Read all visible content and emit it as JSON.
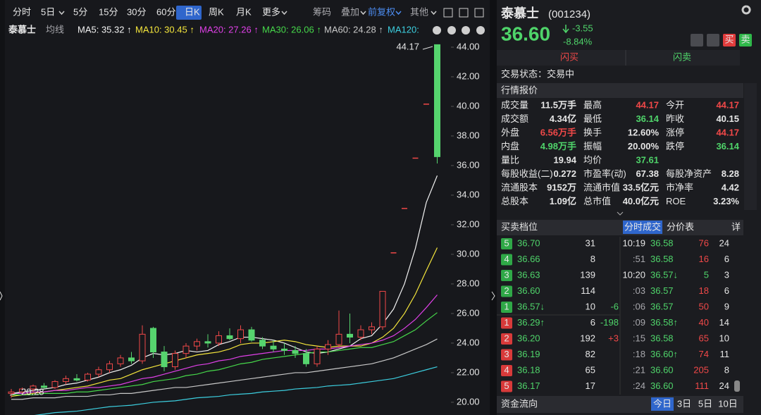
{
  "toolbar": {
    "periods": [
      "分时",
      "5日",
      "5分",
      "15分",
      "30分",
      "60分",
      "日K",
      "周K",
      "月K",
      "更多"
    ],
    "tools": [
      "筹码",
      "叠加",
      "前复权",
      "其他"
    ]
  },
  "chart_header": {
    "name": "泰慕士",
    "ma_type": "均线"
  },
  "chart_data": {
    "type": "candlestick",
    "ylim": [
      19.14,
      44.57
    ],
    "yticks": [
      {
        "value": 20,
        "label": "20.00"
      },
      {
        "value": 22,
        "label": "22.00"
      },
      {
        "value": 24,
        "label": "24.00"
      },
      {
        "value": 26,
        "label": "26.00"
      },
      {
        "value": 28,
        "label": "28.00"
      },
      {
        "value": 30,
        "label": "30.00"
      },
      {
        "value": 32,
        "label": "32.00"
      },
      {
        "value": 34,
        "label": "34.00"
      },
      {
        "value": 36,
        "label": "36.00"
      },
      {
        "value": 38,
        "label": "38.00"
      },
      {
        "value": 40,
        "label": "40.00"
      },
      {
        "value": 42,
        "label": "42.00"
      },
      {
        "value": 44,
        "label": "44.00"
      }
    ],
    "up_color": "#f04848",
    "down_color": "#56d46e",
    "ohlc": [
      [
        20.6,
        20.9,
        20.3,
        20.7
      ],
      [
        20.7,
        21.0,
        20.5,
        20.9
      ],
      [
        20.9,
        21.2,
        20.7,
        21.1
      ],
      [
        21.1,
        21.3,
        20.9,
        21.0
      ],
      [
        21.0,
        21.5,
        20.9,
        21.4
      ],
      [
        21.4,
        21.8,
        21.2,
        21.6
      ],
      [
        21.6,
        21.9,
        21.4,
        21.5
      ],
      [
        21.5,
        22.0,
        21.4,
        21.9
      ],
      [
        21.9,
        22.4,
        21.7,
        22.2
      ],
      [
        22.2,
        22.8,
        22.0,
        22.6
      ],
      [
        22.6,
        23.2,
        22.4,
        23.0
      ],
      [
        23.0,
        23.4,
        22.6,
        22.8
      ],
      [
        22.8,
        25.2,
        22.6,
        24.6
      ],
      [
        25.0,
        25.1,
        23.0,
        23.4
      ],
      [
        23.4,
        23.8,
        22.1,
        22.4
      ],
      [
        22.4,
        23.5,
        22.2,
        23.3
      ],
      [
        23.3,
        24.0,
        23.0,
        23.8
      ],
      [
        23.8,
        24.3,
        23.5,
        24.1
      ],
      [
        24.1,
        24.6,
        23.7,
        24.0
      ],
      [
        24.0,
        24.8,
        23.8,
        24.5
      ],
      [
        24.5,
        25.0,
        24.2,
        24.3
      ],
      [
        24.3,
        25.2,
        24.0,
        24.9
      ],
      [
        24.9,
        25.1,
        24.1,
        24.2
      ],
      [
        24.2,
        24.4,
        23.6,
        23.8
      ],
      [
        23.8,
        24.2,
        23.4,
        23.6
      ],
      [
        23.6,
        24.0,
        23.2,
        23.5
      ],
      [
        23.5,
        23.8,
        23.0,
        23.3
      ],
      [
        23.3,
        23.6,
        22.4,
        22.6
      ],
      [
        22.6,
        23.8,
        22.4,
        23.6
      ],
      [
        23.6,
        24.2,
        23.2,
        23.9
      ],
      [
        23.9,
        26.2,
        23.7,
        24.6
      ],
      [
        24.6,
        26.0,
        24.0,
        24.4
      ],
      [
        24.4,
        25.2,
        24.2,
        24.9
      ],
      [
        24.9,
        25.4,
        24.6,
        25.1
      ],
      [
        25.1,
        27.5,
        24.9,
        27.5
      ],
      [
        30.1,
        30.1,
        30.1,
        30.1
      ],
      [
        33.1,
        33.1,
        33.1,
        33.1
      ],
      [
        36.5,
        36.5,
        36.5,
        36.5
      ],
      [
        40.15,
        40.15,
        40.15,
        40.15
      ],
      [
        44.17,
        44.17,
        36.14,
        36.6
      ]
    ],
    "series": [
      {
        "name": "MA5: 35.32 ↑",
        "color": "#f2f2f2",
        "values": [
          20.6,
          20.7,
          20.8,
          20.9,
          21.0,
          21.2,
          21.3,
          21.5,
          21.7,
          22.0,
          22.2,
          22.5,
          23.0,
          23.3,
          23.2,
          23.3,
          23.5,
          23.4,
          23.5,
          23.9,
          24.1,
          24.4,
          24.4,
          24.3,
          24.2,
          24.0,
          23.7,
          23.4,
          23.3,
          23.4,
          23.6,
          23.8,
          24.3,
          24.5,
          25.3,
          26.3,
          28.0,
          30.4,
          33.5,
          35.32
        ]
      },
      {
        "name": "MA10: 30.45 ↑",
        "color": "#f5e63c",
        "values": [
          20.4,
          20.5,
          20.6,
          20.7,
          20.8,
          20.9,
          21.0,
          21.1,
          21.3,
          21.5,
          21.6,
          21.9,
          22.2,
          22.4,
          22.6,
          22.8,
          23.0,
          23.2,
          23.3,
          23.4,
          23.6,
          23.9,
          24.0,
          24.0,
          24.1,
          24.2,
          24.1,
          23.9,
          23.8,
          23.7,
          23.8,
          23.8,
          23.8,
          24.0,
          24.4,
          25.0,
          26.0,
          27.3,
          28.9,
          30.45
        ]
      },
      {
        "name": "MA20: 27.26 ↑",
        "color": "#e040e8",
        "values": [
          20.6,
          20.6,
          20.7,
          20.7,
          20.8,
          20.8,
          20.9,
          21.0,
          21.0,
          21.1,
          21.2,
          21.4,
          21.6,
          21.7,
          21.9,
          22.1,
          22.3,
          22.5,
          22.6,
          22.8,
          22.9,
          23.1,
          23.2,
          23.3,
          23.4,
          23.5,
          23.5,
          23.5,
          23.6,
          23.6,
          23.7,
          23.8,
          23.9,
          24.0,
          24.2,
          24.5,
          25.0,
          25.6,
          26.4,
          27.26
        ]
      },
      {
        "name": "MA30: 26.06 ↑",
        "color": "#46d84a",
        "values": [
          20.5,
          20.5,
          20.5,
          20.6,
          20.6,
          20.6,
          20.7,
          20.7,
          20.8,
          20.9,
          21.0,
          21.1,
          21.2,
          21.4,
          21.5,
          21.6,
          21.8,
          21.9,
          22.1,
          22.2,
          22.4,
          22.6,
          22.7,
          22.9,
          23.0,
          23.1,
          23.2,
          23.3,
          23.4,
          23.4,
          23.5,
          23.6,
          23.7,
          23.7,
          23.9,
          24.1,
          24.5,
          24.9,
          25.5,
          26.06
        ]
      },
      {
        "name": "MA60: 24.28 ↑",
        "color": "#c8c8c8",
        "values": [
          20.2,
          20.2,
          20.3,
          20.3,
          20.3,
          20.4,
          20.4,
          20.4,
          20.5,
          20.5,
          20.6,
          20.6,
          20.7,
          20.8,
          20.9,
          21.0,
          21.0,
          21.1,
          21.2,
          21.3,
          21.4,
          21.5,
          21.6,
          21.7,
          21.8,
          21.9,
          22.0,
          22.0,
          22.1,
          22.2,
          22.3,
          22.4,
          22.5,
          22.6,
          22.8,
          23.0,
          23.3,
          23.6,
          23.9,
          24.28
        ]
      },
      {
        "name": "MA120:",
        "color": "#3ccfe0",
        "values": [
          18.9,
          19.0,
          19.1,
          19.2,
          19.3,
          19.35,
          19.4,
          19.5,
          19.6,
          19.7,
          19.75,
          19.8,
          19.9,
          20.0,
          20.05,
          20.1,
          20.2,
          20.3,
          20.35,
          20.4,
          20.5,
          20.55,
          20.6,
          20.7,
          20.75,
          20.8,
          20.9,
          20.95,
          21.0,
          21.1,
          21.15,
          21.2,
          21.3,
          21.4,
          21.5,
          21.6,
          21.8,
          22.0,
          22.2,
          22.4
        ]
      }
    ],
    "annotations": [
      "44.17",
      "20.28"
    ]
  },
  "stock": {
    "name": "泰慕士",
    "code": "(001234)",
    "price": "36.60",
    "change": "-3.55",
    "change_pct": "-8.84%",
    "buy": "买",
    "sell": "卖",
    "flash_buy": "闪买",
    "flash_sell": "闪卖",
    "status": "交易状态：交易中"
  },
  "quotes": {
    "title": "行情报价",
    "rows": [
      [
        [
          "成交量",
          "11.5万手"
        ],
        [
          "最高",
          "44.17"
        ],
        [
          "今开",
          "44.17"
        ]
      ],
      [
        [
          "成交额",
          "4.34亿"
        ],
        [
          "最低",
          "36.14"
        ],
        [
          "昨收",
          "40.15"
        ]
      ],
      [
        [
          "外盘",
          "6.56万手"
        ],
        [
          "换手",
          "12.60%"
        ],
        [
          "涨停",
          "44.17"
        ]
      ],
      [
        [
          "内盘",
          "4.98万手"
        ],
        [
          "振幅",
          "20.00%"
        ],
        [
          "跌停",
          "36.14"
        ]
      ],
      [
        [
          "量比",
          "19.94"
        ],
        [
          "均价",
          "37.61"
        ]
      ],
      [
        [
          "每股收益(二)",
          "0.272"
        ],
        [
          "市盈率(动)",
          "67.38"
        ],
        [
          "每股净资产",
          "8.28"
        ]
      ],
      [
        [
          "流通股本",
          "9152万"
        ],
        [
          "流通市值",
          "33.5亿元"
        ],
        [
          "市净率",
          "4.42"
        ]
      ],
      [
        [
          "总股本",
          "1.09亿"
        ],
        [
          "总市值",
          "40.0亿元"
        ],
        [
          "ROE",
          "3.23%"
        ]
      ]
    ]
  },
  "order_book": {
    "title": "买卖档位",
    "tabs": [
      "分时成交",
      "分价表",
      "详"
    ],
    "rows": [
      [
        "5",
        "36.70",
        "31"
      ],
      [
        "4",
        "36.66",
        "8"
      ],
      [
        "3",
        "36.63",
        "139"
      ],
      [
        "2",
        "36.60",
        "114"
      ],
      [
        "1",
        "36.57↓",
        "10",
        "-6"
      ],
      [
        "1",
        "36.29↑",
        "6",
        "-198"
      ],
      [
        "2",
        "36.20",
        "192",
        "+3"
      ],
      [
        "3",
        "36.19",
        "82"
      ],
      [
        "4",
        "36.18",
        "65"
      ],
      [
        "5",
        "36.17",
        "17"
      ]
    ],
    "ticks": [
      [
        "10:19",
        "36.58",
        "76",
        "24"
      ],
      [
        ":51",
        "36.58",
        "16",
        "6"
      ],
      [
        "10:20",
        "36.57↓",
        "5",
        "3"
      ],
      [
        ":03",
        "36.57",
        "18",
        "6"
      ],
      [
        ":06",
        "36.57",
        "50",
        "9"
      ],
      [
        ":09",
        "36.58↑",
        "40",
        "14"
      ],
      [
        ":15",
        "36.58",
        "65",
        "10"
      ],
      [
        ":18",
        "36.60↑",
        "74",
        "11"
      ],
      [
        ":21",
        "36.60",
        "205",
        "8"
      ],
      [
        ":24",
        "36.60",
        "111",
        "24"
      ]
    ]
  },
  "fund_flow": {
    "title": "资金流向",
    "tabs": [
      "今日",
      "3日",
      "5日",
      "10日"
    ]
  }
}
